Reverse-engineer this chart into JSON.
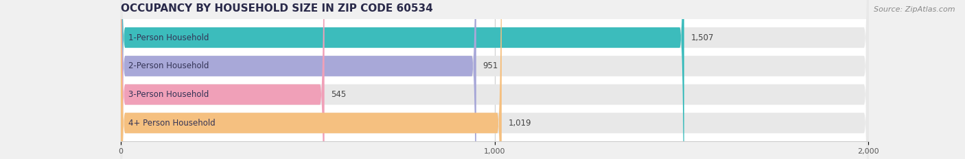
{
  "title": "OCCUPANCY BY HOUSEHOLD SIZE IN ZIP CODE 60534",
  "source": "Source: ZipAtlas.com",
  "categories": [
    "1-Person Household",
    "2-Person Household",
    "3-Person Household",
    "4+ Person Household"
  ],
  "values": [
    1507,
    951,
    545,
    1019
  ],
  "bar_colors": [
    "#3cbcbc",
    "#a8a8d8",
    "#f0a0b8",
    "#f5c080"
  ],
  "xlim": [
    -30,
    2000
  ],
  "xlim_display": [
    0,
    2000
  ],
  "xticks": [
    0,
    1000,
    2000
  ],
  "xtick_labels": [
    "0",
    "1,000",
    "2,000"
  ],
  "bar_height": 0.72,
  "bg_bar_color": "#e8e8e8",
  "title_fontsize": 11,
  "source_fontsize": 8,
  "label_fontsize": 8.5,
  "value_fontsize": 8.5,
  "tick_fontsize": 8,
  "background_color": "#f0f0f0",
  "plot_bg_color": "#ffffff",
  "title_color": "#2a2a4a",
  "source_color": "#888888",
  "label_text_color": "#333355",
  "value_text_color": "#444444",
  "rounding_size": 12
}
